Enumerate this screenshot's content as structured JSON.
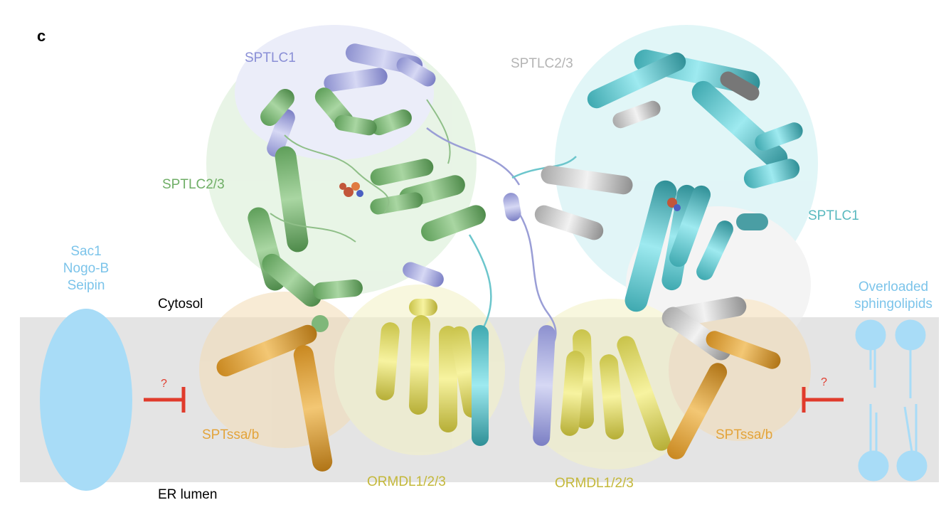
{
  "panel_letter": "c",
  "labels": {
    "sptlc1_left": "SPTLC1",
    "sptlc23_top_right": "SPTLC2/3",
    "sptlc23_left": "SPTLC2/3",
    "sptlc1_right": "SPTLC1",
    "cytosol": "Cytosol",
    "er_lumen": "ER lumen",
    "sptssa_left": "SPTssa/b",
    "sptssa_right": "SPTssa/b",
    "ormdl_left": "ORMDL1/2/3",
    "ormdl_right": "ORMDL1/2/3",
    "question_left": "?",
    "question_right": "?"
  },
  "left_regulators": [
    "Sac1",
    "Nogo-B",
    "Seipin"
  ],
  "right_regulators": [
    "Overloaded",
    "sphingolipids"
  ],
  "colors": {
    "membrane": "#e6e6e6",
    "sptlc1_lavender": "#a6a9dc",
    "sptlc23_green": "#7fb77a",
    "sptlc1_cyan": "#5fc6cc",
    "sptlc23_grey": "#c4c4c4",
    "ormdl_yellow": "#d9d45a",
    "sptssa_orange": "#e3a43b",
    "regulator_blue": "#9fd8f5",
    "inhibit_red": "#e03b2c"
  }
}
